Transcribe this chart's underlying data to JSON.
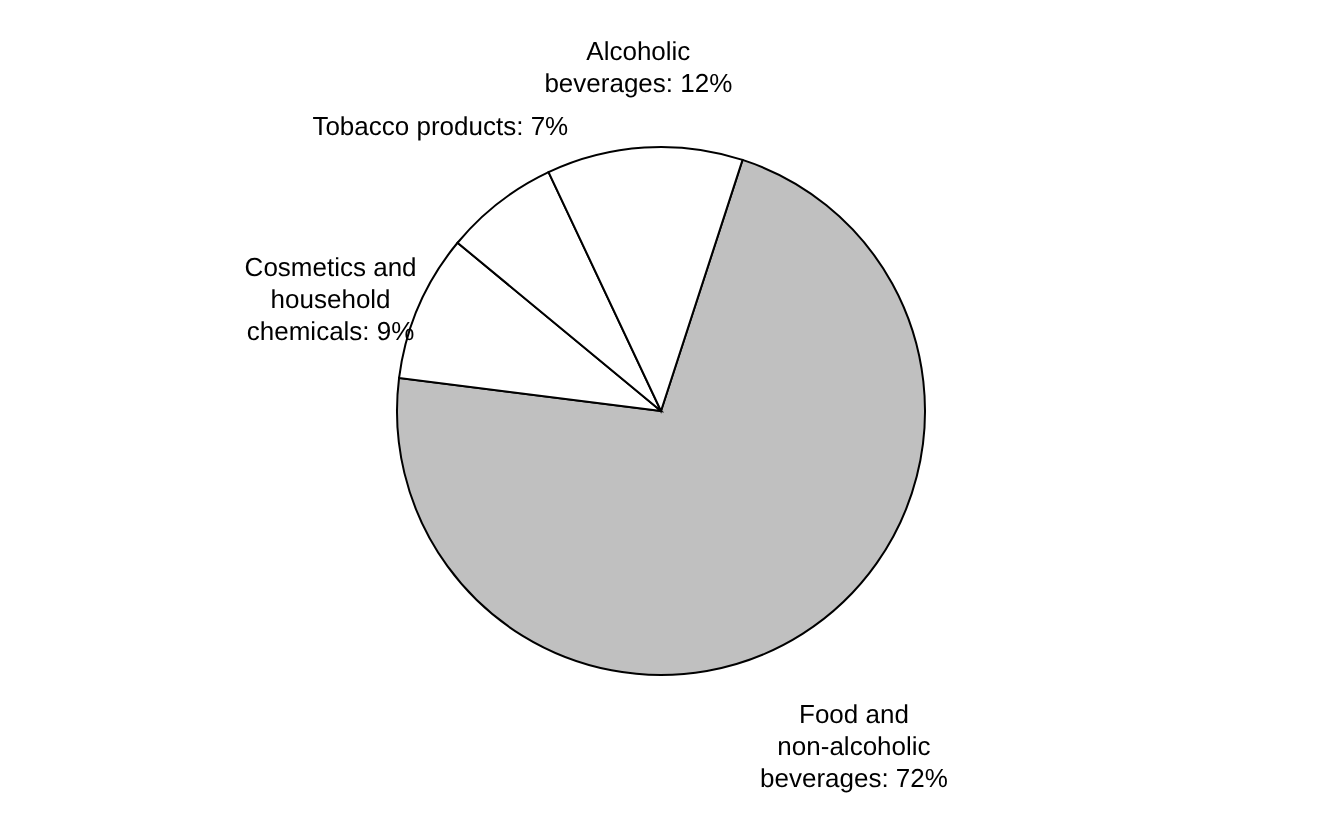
{
  "chart_data": {
    "type": "pie",
    "categories": [
      "Food and non-alcoholic beverages: 72%",
      "Cosmetics and household chemicals: 9%",
      "Tobacco products: 7%",
      "Alcoholic beverages: 12%"
    ],
    "values": [
      72,
      9,
      7,
      12
    ],
    "colors": [
      "#c0c0c0",
      "#ffffff",
      "#ffffff",
      "#ffffff"
    ],
    "legend": false
  }
}
